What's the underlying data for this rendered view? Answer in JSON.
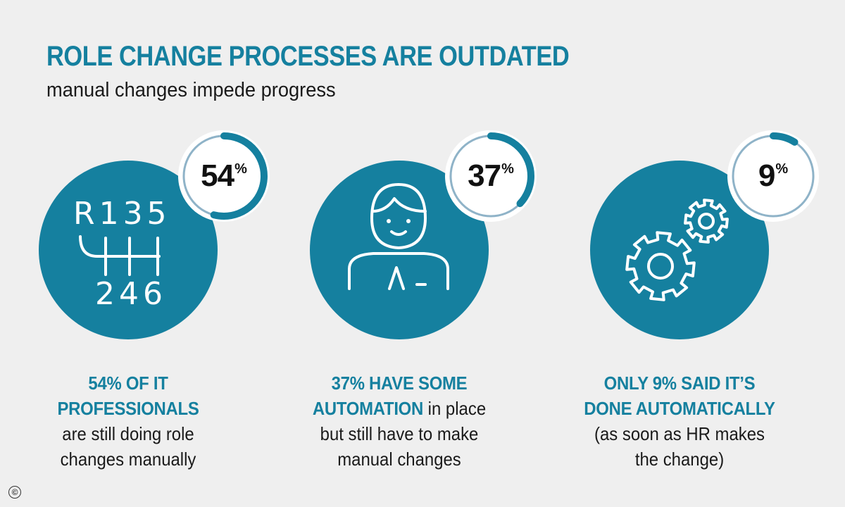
{
  "colors": {
    "accent": "#15809f",
    "ring_track": "#8fb3c8",
    "text": "#1a1a1a",
    "background": "#efefef"
  },
  "header": {
    "title": "ROLE CHANGE PROCESSES ARE OUTDATED",
    "subtitle": "manual changes impede progress"
  },
  "chart_data": {
    "type": "gauge",
    "title": "ROLE CHANGE PROCESSES ARE OUTDATED",
    "subtitle": "manual changes impede progress",
    "unit": "%",
    "items": [
      {
        "value": 54,
        "value_label": "54",
        "icon": "gear-shift-icon",
        "caption": [
          {
            "text": "54% OF IT",
            "bold": true
          },
          {
            "text": "PROFESSIONALS",
            "bold": true
          },
          {
            "text": "are still doing role",
            "bold": false
          },
          {
            "text": "changes manually",
            "bold": false
          }
        ]
      },
      {
        "value": 37,
        "value_label": "37",
        "icon": "person-icon",
        "caption": [
          {
            "text": "37% HAVE SOME",
            "bold": true
          },
          {
            "text": "AUTOMATION",
            "bold": true,
            "suffix": " in place"
          },
          {
            "text": "but still have to make",
            "bold": false
          },
          {
            "text": "manual changes",
            "bold": false
          }
        ]
      },
      {
        "value": 9,
        "value_label": "9",
        "icon": "gears-icon",
        "caption": [
          {
            "text": "ONLY 9% SAID IT’S",
            "bold": true
          },
          {
            "text": "DONE AUTOMATICALLY",
            "bold": true
          },
          {
            "text": "(as soon as HR makes",
            "bold": false
          },
          {
            "text": "the change)",
            "bold": false
          }
        ]
      }
    ]
  },
  "footer": {
    "copyright_symbol": "©"
  }
}
